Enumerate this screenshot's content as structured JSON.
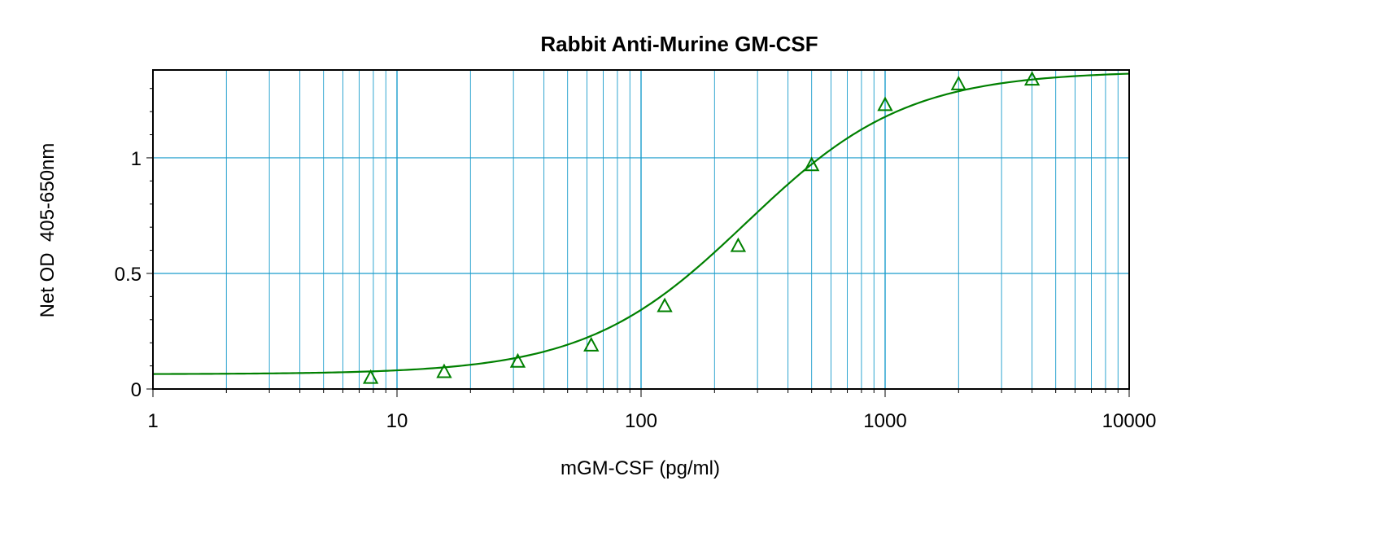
{
  "chart_data": {
    "type": "scatter",
    "title": "Rabbit Anti-Murine GM-CSF",
    "xlabel": "mGM-CSF (pg/ml)",
    "ylabel": "Net OD  405-650nm",
    "x_scale": "log",
    "xlim": [
      1,
      10000
    ],
    "ylim": [
      0,
      1.38
    ],
    "x_ticks": [
      1,
      10,
      100,
      1000,
      10000
    ],
    "x_tick_labels": [
      "1",
      "10",
      "100",
      "1000",
      "10000"
    ],
    "y_ticks": [
      0,
      0.5,
      1
    ],
    "y_tick_labels": [
      "0",
      "0.5",
      "1"
    ],
    "grid": true,
    "series": [
      {
        "marker": "open-triangle",
        "color": "#008000",
        "x": [
          7.8,
          15.6,
          31.25,
          62.5,
          125,
          250,
          500,
          1000,
          2000,
          4000
        ],
        "y": [
          0.05,
          0.075,
          0.12,
          0.19,
          0.36,
          0.62,
          0.97,
          1.23,
          1.32,
          1.34
        ]
      }
    ],
    "fit_curve": {
      "type": "4PL",
      "color": "#008000",
      "bottom": 0.064,
      "top": 1.375,
      "ec50": 270,
      "hill": 1.32
    },
    "colors": {
      "grid": "#1a9ccc",
      "frame": "#000000",
      "data": "#008000"
    }
  }
}
